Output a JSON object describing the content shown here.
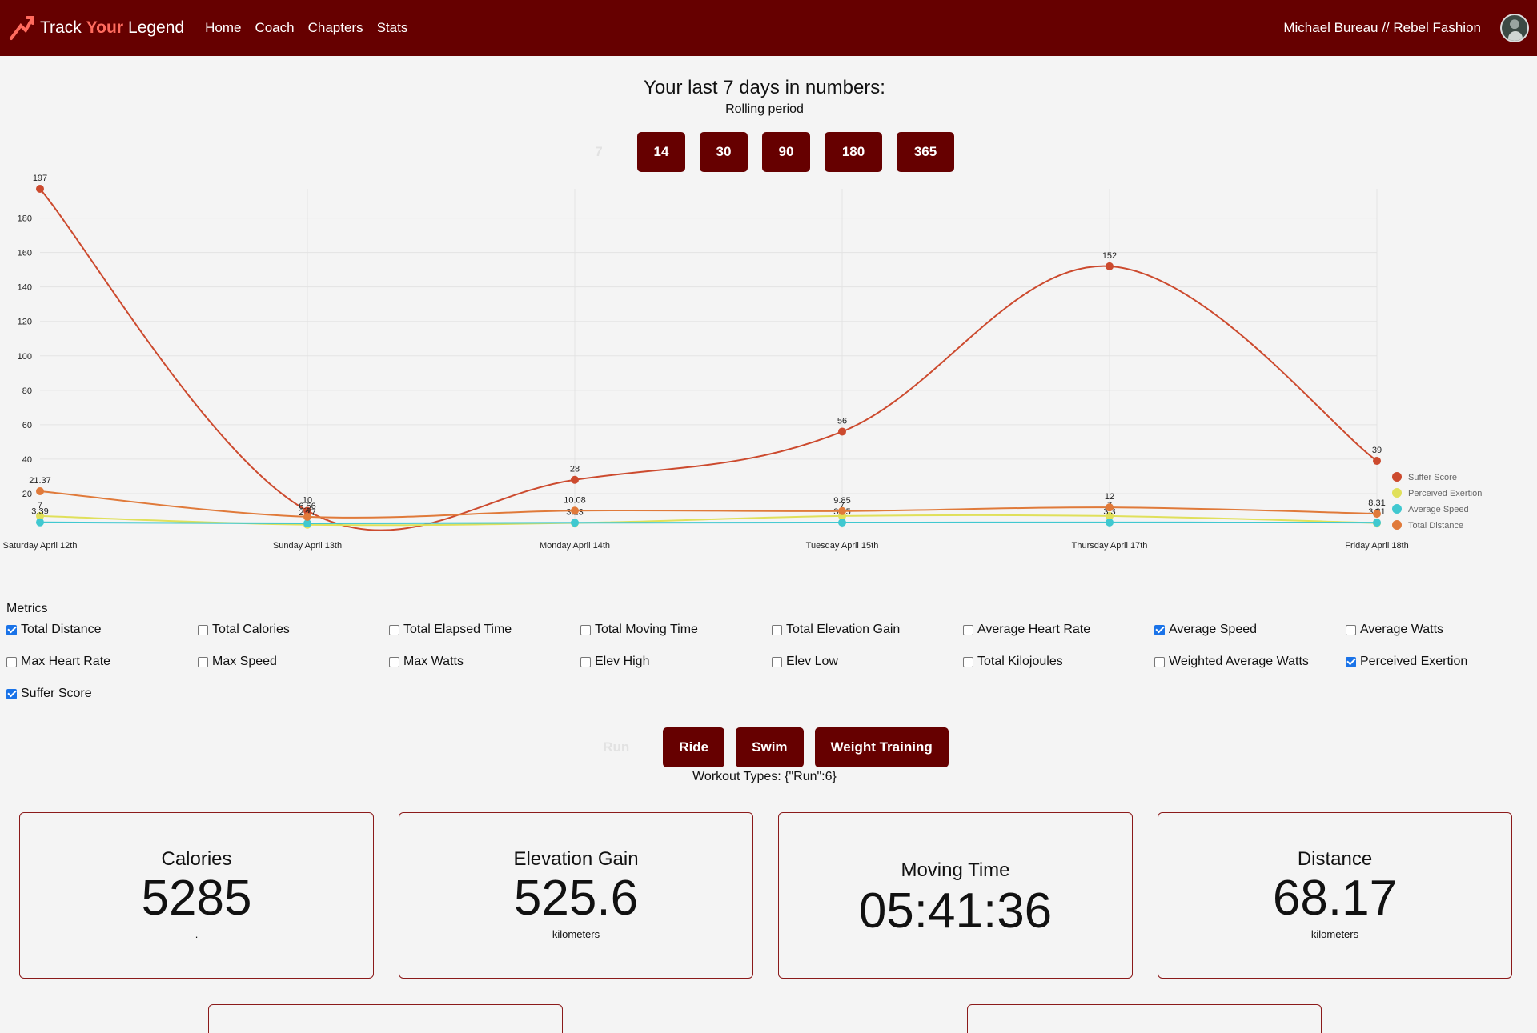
{
  "nav": {
    "brand_pre": "Track",
    "brand_accent": "Your",
    "brand_post": "Legend",
    "links": [
      "Home",
      "Coach",
      "Chapters",
      "Stats"
    ],
    "user": "Michael Bureau // Rebel Fashion"
  },
  "heading": "Your last 7 days in numbers:",
  "subheading": "Rolling period",
  "periods": [
    "7",
    "14",
    "30",
    "90",
    "180",
    "365"
  ],
  "metrics_title": "Metrics",
  "metrics": [
    {
      "label": "Total Distance",
      "checked": true
    },
    {
      "label": "Total Calories",
      "checked": false
    },
    {
      "label": "Total Elapsed Time",
      "checked": false
    },
    {
      "label": "Total Moving Time",
      "checked": false
    },
    {
      "label": "Total Elevation Gain",
      "checked": false
    },
    {
      "label": "Average Heart Rate",
      "checked": false
    },
    {
      "label": "Average Speed",
      "checked": true
    },
    {
      "label": "Average Watts",
      "checked": false
    },
    {
      "label": "Max Heart Rate",
      "checked": false
    },
    {
      "label": "Max Speed",
      "checked": false
    },
    {
      "label": "Max Watts",
      "checked": false
    },
    {
      "label": "Elev High",
      "checked": false
    },
    {
      "label": "Elev Low",
      "checked": false
    },
    {
      "label": "Total Kilojoules",
      "checked": false
    },
    {
      "label": "Weighted Average Watts",
      "checked": false
    },
    {
      "label": "Perceived Exertion",
      "checked": true
    },
    {
      "label": "Suffer Score",
      "checked": true
    }
  ],
  "workouts": [
    "Run",
    "Ride",
    "Swim",
    "Weight Training"
  ],
  "workout_types_text": "Workout Types: {\"Run\":6}",
  "cards": [
    {
      "title": "Calories",
      "value": "5285",
      "unit": "."
    },
    {
      "title": "Elevation Gain",
      "value": "525.6",
      "unit": "kilometers"
    },
    {
      "title": "Moving Time",
      "value": "05:41:36",
      "unit": ""
    },
    {
      "title": "Distance",
      "value": "68.17",
      "unit": "kilometers"
    }
  ],
  "colors": {
    "nav_bg": "#660000",
    "suffer": "#cc4a2e",
    "exertion": "#e0e05a",
    "speed": "#40c8d0",
    "distance": "#e07a3a"
  },
  "chart_data": {
    "type": "line",
    "categories": [
      "Saturday April 12th",
      "Sunday April 13th",
      "Monday April 14th",
      "Tuesday April 15th",
      "Thursday April 17th",
      "Friday April 18th"
    ],
    "ylim": [
      0,
      197
    ],
    "yticks": [
      20,
      40,
      60,
      80,
      100,
      120,
      140,
      160,
      180
    ],
    "legend_position": "right",
    "series": [
      {
        "name": "Suffer Score",
        "color": "#cc4a2e",
        "values": [
          197,
          10,
          28,
          56,
          152,
          39
        ],
        "labels": [
          "197",
          "10",
          "28",
          "56",
          "152",
          "39"
        ]
      },
      {
        "name": "Perceived Exertion",
        "color": "#e0e05a",
        "values": [
          7,
          2,
          3,
          7,
          7,
          3
        ],
        "labels": [
          "7",
          "2",
          "3",
          "7",
          "7",
          "3"
        ]
      },
      {
        "name": "Average Speed",
        "color": "#40c8d0",
        "values": [
          3.39,
          2.77,
          3.13,
          3.25,
          3.3,
          3.21
        ],
        "labels": [
          "3.39",
          "2.77",
          "3.13",
          "3.25",
          "3.3",
          "3.21"
        ]
      },
      {
        "name": "Total Distance",
        "color": "#e07a3a",
        "values": [
          21.37,
          6.56,
          10.08,
          9.85,
          12,
          8.31
        ],
        "labels": [
          "21.37",
          "6.56",
          "10.08",
          "9.85",
          "12",
          "8.31"
        ]
      }
    ]
  }
}
